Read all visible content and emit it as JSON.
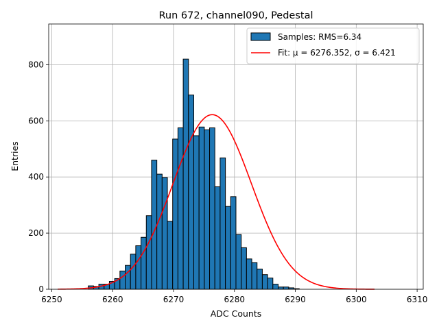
{
  "chart_data": {
    "type": "bar",
    "title": "Run 672, channel090, Pedestal",
    "xlabel": "ADC Counts",
    "ylabel": "Entries",
    "xlim": [
      6249.5,
      6311
    ],
    "ylim": [
      0,
      945
    ],
    "xticks": [
      6250,
      6260,
      6270,
      6280,
      6290,
      6300,
      6310
    ],
    "yticks": [
      0,
      200,
      400,
      600,
      800
    ],
    "grid": true,
    "legend_position": "top-right",
    "colors": {
      "bar_fill": "#1f77b4",
      "bar_edge": "#000000",
      "fit_line": "#ff0000",
      "grid": "#b0b0b0"
    },
    "histogram": {
      "name": "Samples: RMS=6.34",
      "bin_width": 0.866,
      "bin_start": 6256.0,
      "counts": [
        12,
        10,
        18,
        18,
        28,
        38,
        65,
        85,
        125,
        155,
        185,
        262,
        460,
        410,
        398,
        242,
        535,
        575,
        820,
        692,
        547,
        578,
        568,
        575,
        365,
        468,
        295,
        330,
        195,
        148,
        108,
        95,
        72,
        52,
        40,
        18,
        8,
        8,
        5,
        2
      ]
    },
    "fit": {
      "name": "Fit: μ = 6276.352, σ = 6.421",
      "mu": 6276.352,
      "sigma": 6.421,
      "amplitude": 622,
      "x_range": [
        6251,
        6303
      ]
    }
  }
}
